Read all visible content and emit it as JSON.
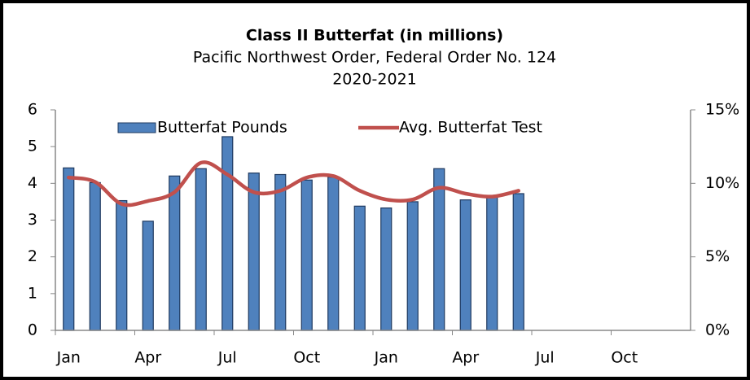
{
  "chart_data": {
    "type": "bar_line",
    "title": "Class II Butterfat (in millions)",
    "subtitle": "Pacific Northwest Order, Federal Order No. 124",
    "period": "2020-2021",
    "categories": [
      "Jan",
      null,
      null,
      "Apr",
      null,
      null,
      "Jul",
      null,
      null,
      "Oct",
      null,
      null,
      "Jan",
      null,
      null,
      "Apr",
      null,
      null,
      "Jul",
      null,
      null,
      "Oct",
      null,
      null
    ],
    "series": [
      {
        "name": "Butterfat Pounds",
        "color": "#4f81bd",
        "values": [
          4.42,
          4.02,
          3.53,
          2.97,
          4.2,
          4.4,
          5.27,
          4.28,
          4.24,
          4.09,
          4.17,
          3.38,
          3.33,
          3.5,
          4.4,
          3.55,
          3.65,
          3.72,
          null,
          null,
          null,
          null,
          null,
          null
        ]
      },
      {
        "name": "Avg. Butterfat Test",
        "color": "#c0504d",
        "axis": "y2",
        "values": [
          10.4,
          10.1,
          8.6,
          8.8,
          9.4,
          11.4,
          10.6,
          9.4,
          9.5,
          10.4,
          10.5,
          9.5,
          8.9,
          8.9,
          9.7,
          9.3,
          9.1,
          9.5,
          null,
          null,
          null,
          null,
          null,
          null
        ]
      }
    ],
    "ylim": [
      0,
      6
    ],
    "yticks": [
      0,
      1,
      2,
      3,
      4,
      5,
      6
    ],
    "y2lim": [
      0,
      15
    ],
    "y2ticks": [
      {
        "value": 0,
        "label": "0%"
      },
      {
        "value": 5,
        "label": "5%"
      },
      {
        "value": 10,
        "label": "10%"
      },
      {
        "value": 15,
        "label": "15%"
      }
    ],
    "legend": "top"
  }
}
